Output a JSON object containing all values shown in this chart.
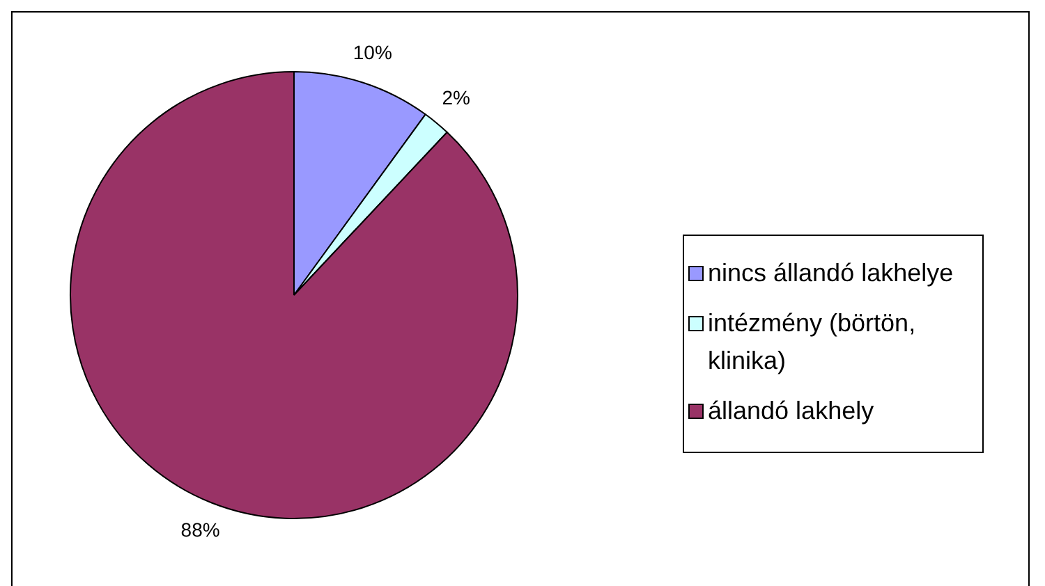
{
  "chart_data": {
    "type": "pie",
    "categories": [
      "nincs állandó lakhelye",
      "intézmény (börtön, klinika)",
      "állandó lakhely"
    ],
    "values": [
      10,
      2,
      88
    ],
    "colors": [
      "#9999ff",
      "#ccffff",
      "#993366"
    ],
    "value_labels": [
      "10%",
      "2%",
      "88%"
    ],
    "legend": "right"
  }
}
